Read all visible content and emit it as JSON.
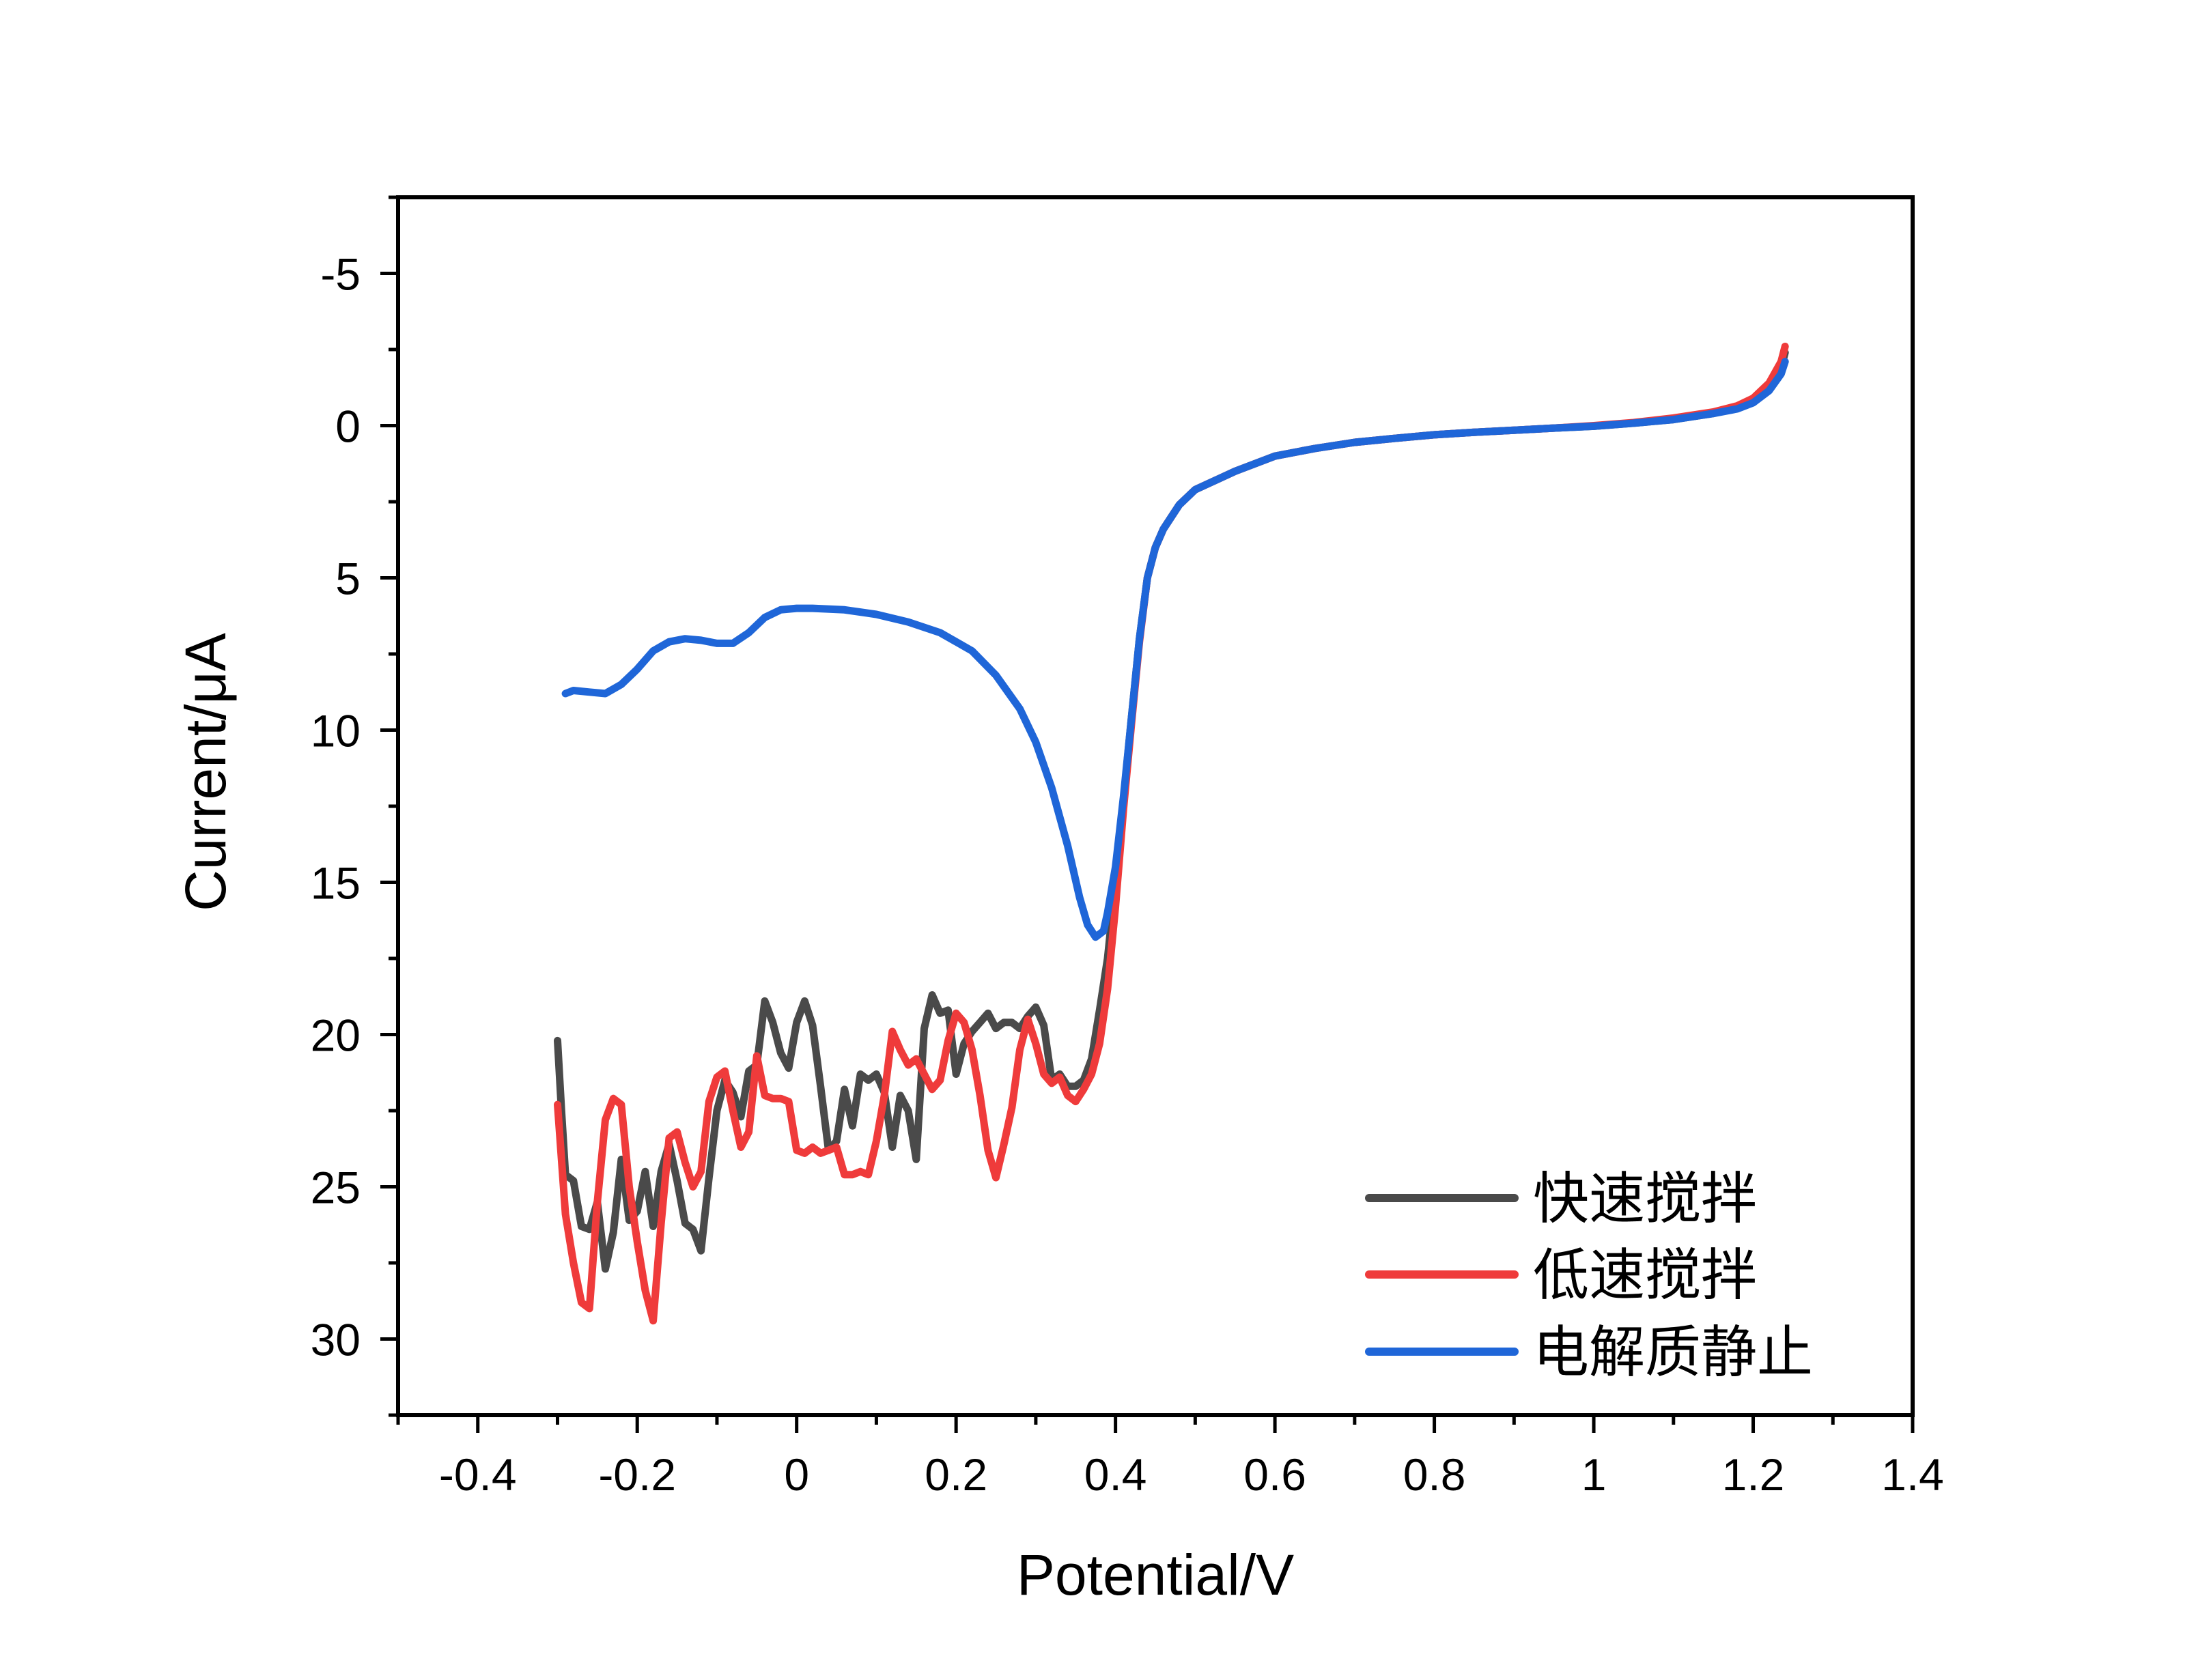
{
  "chart_data": {
    "type": "line",
    "xlabel": "Potential/V",
    "ylabel": "Current/μA",
    "xlim": [
      -0.5,
      1.4
    ],
    "ylim": [
      32.5,
      -7.5
    ],
    "y_axis_inverted": true,
    "grid": false,
    "legend_position": "bottom-right",
    "x_ticks": [
      -0.4,
      -0.2,
      0,
      0.2,
      0.4,
      0.6,
      0.8,
      1,
      1.2,
      1.4
    ],
    "x_tick_labels": [
      "-0.4",
      "-0.2",
      "0",
      "0.2",
      "0.4",
      "0.6",
      "0.8",
      "1",
      "1.2",
      "1.4"
    ],
    "y_ticks": [
      -5,
      0,
      5,
      10,
      15,
      20,
      25,
      30
    ],
    "y_tick_labels": [
      "-5",
      "0",
      "5",
      "10",
      "15",
      "20",
      "25",
      "30"
    ],
    "series": [
      {
        "name": "快速搅拌",
        "color": "#4a4a4a",
        "points": [
          [
            -0.3,
            20.2
          ],
          [
            -0.295,
            22.5
          ],
          [
            -0.29,
            24.6
          ],
          [
            -0.28,
            24.8
          ],
          [
            -0.27,
            26.3
          ],
          [
            -0.26,
            26.4
          ],
          [
            -0.25,
            25.5
          ],
          [
            -0.24,
            27.7
          ],
          [
            -0.23,
            26.5
          ],
          [
            -0.22,
            24.1
          ],
          [
            -0.21,
            26.1
          ],
          [
            -0.2,
            25.8
          ],
          [
            -0.19,
            24.5
          ],
          [
            -0.18,
            26.3
          ],
          [
            -0.17,
            24.5
          ],
          [
            -0.16,
            23.6
          ],
          [
            -0.15,
            24.8
          ],
          [
            -0.14,
            26.2
          ],
          [
            -0.13,
            26.4
          ],
          [
            -0.12,
            27.1
          ],
          [
            -0.11,
            24.7
          ],
          [
            -0.1,
            22.5
          ],
          [
            -0.09,
            21.5
          ],
          [
            -0.08,
            21.9
          ],
          [
            -0.07,
            22.7
          ],
          [
            -0.06,
            21.2
          ],
          [
            -0.05,
            21.0
          ],
          [
            -0.04,
            18.9
          ],
          [
            -0.03,
            19.6
          ],
          [
            -0.02,
            20.6
          ],
          [
            -0.01,
            21.1
          ],
          [
            0.0,
            19.6
          ],
          [
            0.01,
            18.9
          ],
          [
            0.02,
            19.7
          ],
          [
            0.03,
            21.7
          ],
          [
            0.04,
            23.8
          ],
          [
            0.05,
            23.5
          ],
          [
            0.06,
            21.8
          ],
          [
            0.07,
            23.0
          ],
          [
            0.08,
            21.3
          ],
          [
            0.09,
            21.5
          ],
          [
            0.1,
            21.3
          ],
          [
            0.11,
            21.9
          ],
          [
            0.12,
            23.7
          ],
          [
            0.13,
            22.0
          ],
          [
            0.14,
            22.5
          ],
          [
            0.15,
            24.1
          ],
          [
            0.16,
            19.8
          ],
          [
            0.17,
            18.7
          ],
          [
            0.18,
            19.3
          ],
          [
            0.19,
            19.2
          ],
          [
            0.2,
            21.3
          ],
          [
            0.21,
            20.3
          ],
          [
            0.22,
            19.9
          ],
          [
            0.23,
            19.6
          ],
          [
            0.24,
            19.3
          ],
          [
            0.25,
            19.8
          ],
          [
            0.26,
            19.6
          ],
          [
            0.27,
            19.6
          ],
          [
            0.28,
            19.8
          ],
          [
            0.29,
            19.4
          ],
          [
            0.3,
            19.1
          ],
          [
            0.31,
            19.7
          ],
          [
            0.32,
            21.5
          ],
          [
            0.33,
            21.3
          ],
          [
            0.34,
            21.7
          ],
          [
            0.35,
            21.7
          ],
          [
            0.36,
            21.5
          ],
          [
            0.37,
            20.8
          ],
          [
            0.38,
            19.2
          ],
          [
            0.39,
            17.5
          ],
          [
            0.4,
            15.0
          ],
          [
            0.41,
            12.3
          ],
          [
            0.42,
            9.6
          ],
          [
            0.43,
            7.0
          ],
          [
            0.44,
            5.0
          ],
          [
            0.45,
            4.0
          ],
          [
            0.46,
            3.4
          ],
          [
            0.48,
            2.6
          ],
          [
            0.5,
            2.1
          ],
          [
            0.55,
            1.5
          ],
          [
            0.6,
            1.0
          ],
          [
            0.65,
            0.75
          ],
          [
            0.7,
            0.55
          ],
          [
            0.75,
            0.42
          ],
          [
            0.8,
            0.3
          ],
          [
            0.85,
            0.22
          ],
          [
            0.9,
            0.15
          ],
          [
            0.95,
            0.08
          ],
          [
            1.0,
            0.02
          ],
          [
            1.05,
            -0.08
          ],
          [
            1.1,
            -0.2
          ],
          [
            1.15,
            -0.4
          ],
          [
            1.18,
            -0.6
          ],
          [
            1.2,
            -0.8
          ],
          [
            1.22,
            -1.25
          ],
          [
            1.235,
            -1.9
          ],
          [
            1.24,
            -2.4
          ]
        ]
      },
      {
        "name": "低速搅拌",
        "color": "#ef3b3b",
        "points": [
          [
            -0.3,
            22.3
          ],
          [
            -0.29,
            25.9
          ],
          [
            -0.28,
            27.5
          ],
          [
            -0.27,
            28.8
          ],
          [
            -0.26,
            29.0
          ],
          [
            -0.25,
            25.5
          ],
          [
            -0.24,
            22.8
          ],
          [
            -0.23,
            22.1
          ],
          [
            -0.22,
            22.3
          ],
          [
            -0.21,
            25.0
          ],
          [
            -0.2,
            26.8
          ],
          [
            -0.19,
            28.4
          ],
          [
            -0.18,
            29.4
          ],
          [
            -0.17,
            26.2
          ],
          [
            -0.16,
            23.4
          ],
          [
            -0.15,
            23.2
          ],
          [
            -0.14,
            24.2
          ],
          [
            -0.13,
            25.0
          ],
          [
            -0.12,
            24.5
          ],
          [
            -0.11,
            22.2
          ],
          [
            -0.1,
            21.4
          ],
          [
            -0.09,
            21.2
          ],
          [
            -0.08,
            22.5
          ],
          [
            -0.07,
            23.7
          ],
          [
            -0.06,
            23.2
          ],
          [
            -0.05,
            20.7
          ],
          [
            -0.04,
            22.0
          ],
          [
            -0.03,
            22.1
          ],
          [
            -0.02,
            22.1
          ],
          [
            -0.01,
            22.2
          ],
          [
            0.0,
            23.8
          ],
          [
            0.01,
            23.9
          ],
          [
            0.02,
            23.7
          ],
          [
            0.03,
            23.9
          ],
          [
            0.04,
            23.8
          ],
          [
            0.05,
            23.7
          ],
          [
            0.06,
            24.6
          ],
          [
            0.07,
            24.6
          ],
          [
            0.08,
            24.5
          ],
          [
            0.09,
            24.6
          ],
          [
            0.1,
            23.5
          ],
          [
            0.11,
            22.0
          ],
          [
            0.12,
            19.9
          ],
          [
            0.13,
            20.5
          ],
          [
            0.14,
            21.0
          ],
          [
            0.15,
            20.8
          ],
          [
            0.16,
            21.3
          ],
          [
            0.17,
            21.8
          ],
          [
            0.18,
            21.5
          ],
          [
            0.19,
            20.2
          ],
          [
            0.2,
            19.3
          ],
          [
            0.21,
            19.6
          ],
          [
            0.22,
            20.5
          ],
          [
            0.23,
            22.0
          ],
          [
            0.24,
            23.8
          ],
          [
            0.25,
            24.7
          ],
          [
            0.26,
            23.6
          ],
          [
            0.27,
            22.4
          ],
          [
            0.28,
            20.5
          ],
          [
            0.29,
            19.5
          ],
          [
            0.3,
            20.3
          ],
          [
            0.31,
            21.3
          ],
          [
            0.32,
            21.6
          ],
          [
            0.33,
            21.4
          ],
          [
            0.34,
            22.0
          ],
          [
            0.35,
            22.2
          ],
          [
            0.36,
            21.8
          ],
          [
            0.37,
            21.3
          ],
          [
            0.38,
            20.3
          ],
          [
            0.39,
            18.5
          ],
          [
            0.4,
            15.8
          ],
          [
            0.41,
            12.6
          ],
          [
            0.42,
            9.8
          ],
          [
            0.43,
            7.1
          ],
          [
            0.44,
            5.0
          ],
          [
            0.45,
            4.0
          ],
          [
            0.46,
            3.4
          ],
          [
            0.48,
            2.6
          ],
          [
            0.5,
            2.1
          ],
          [
            0.55,
            1.5
          ],
          [
            0.6,
            1.0
          ],
          [
            0.65,
            0.75
          ],
          [
            0.7,
            0.55
          ],
          [
            0.75,
            0.42
          ],
          [
            0.8,
            0.3
          ],
          [
            0.85,
            0.22
          ],
          [
            0.9,
            0.15
          ],
          [
            0.95,
            0.08
          ],
          [
            1.0,
            0.0
          ],
          [
            1.05,
            -0.1
          ],
          [
            1.1,
            -0.25
          ],
          [
            1.15,
            -0.45
          ],
          [
            1.18,
            -0.65
          ],
          [
            1.2,
            -0.9
          ],
          [
            1.22,
            -1.4
          ],
          [
            1.235,
            -2.1
          ],
          [
            1.24,
            -2.6
          ]
        ]
      },
      {
        "name": "电解质静止",
        "color": "#1f66d8",
        "points": [
          [
            -0.29,
            8.8
          ],
          [
            -0.28,
            8.7
          ],
          [
            -0.26,
            8.75
          ],
          [
            -0.24,
            8.8
          ],
          [
            -0.22,
            8.5
          ],
          [
            -0.2,
            8.0
          ],
          [
            -0.18,
            7.4
          ],
          [
            -0.16,
            7.1
          ],
          [
            -0.14,
            7.0
          ],
          [
            -0.12,
            7.05
          ],
          [
            -0.1,
            7.15
          ],
          [
            -0.08,
            7.15
          ],
          [
            -0.06,
            6.8
          ],
          [
            -0.04,
            6.3
          ],
          [
            -0.02,
            6.05
          ],
          [
            0.0,
            6.0
          ],
          [
            0.02,
            6.0
          ],
          [
            0.06,
            6.05
          ],
          [
            0.1,
            6.2
          ],
          [
            0.14,
            6.45
          ],
          [
            0.18,
            6.8
          ],
          [
            0.22,
            7.4
          ],
          [
            0.25,
            8.2
          ],
          [
            0.28,
            9.3
          ],
          [
            0.3,
            10.4
          ],
          [
            0.32,
            11.9
          ],
          [
            0.34,
            13.8
          ],
          [
            0.355,
            15.5
          ],
          [
            0.365,
            16.4
          ],
          [
            0.375,
            16.8
          ],
          [
            0.385,
            16.6
          ],
          [
            0.39,
            16.0
          ],
          [
            0.4,
            14.5
          ],
          [
            0.41,
            12.2
          ],
          [
            0.42,
            9.6
          ],
          [
            0.43,
            7.0
          ],
          [
            0.44,
            5.0
          ],
          [
            0.45,
            4.0
          ],
          [
            0.46,
            3.4
          ],
          [
            0.48,
            2.6
          ],
          [
            0.5,
            2.1
          ],
          [
            0.55,
            1.5
          ],
          [
            0.6,
            1.0
          ],
          [
            0.65,
            0.75
          ],
          [
            0.7,
            0.55
          ],
          [
            0.75,
            0.42
          ],
          [
            0.8,
            0.3
          ],
          [
            0.85,
            0.22
          ],
          [
            0.9,
            0.15
          ],
          [
            0.95,
            0.08
          ],
          [
            1.0,
            0.02
          ],
          [
            1.05,
            -0.08
          ],
          [
            1.1,
            -0.2
          ],
          [
            1.15,
            -0.4
          ],
          [
            1.18,
            -0.55
          ],
          [
            1.2,
            -0.75
          ],
          [
            1.22,
            -1.15
          ],
          [
            1.235,
            -1.7
          ],
          [
            1.24,
            -2.1
          ]
        ]
      }
    ]
  }
}
